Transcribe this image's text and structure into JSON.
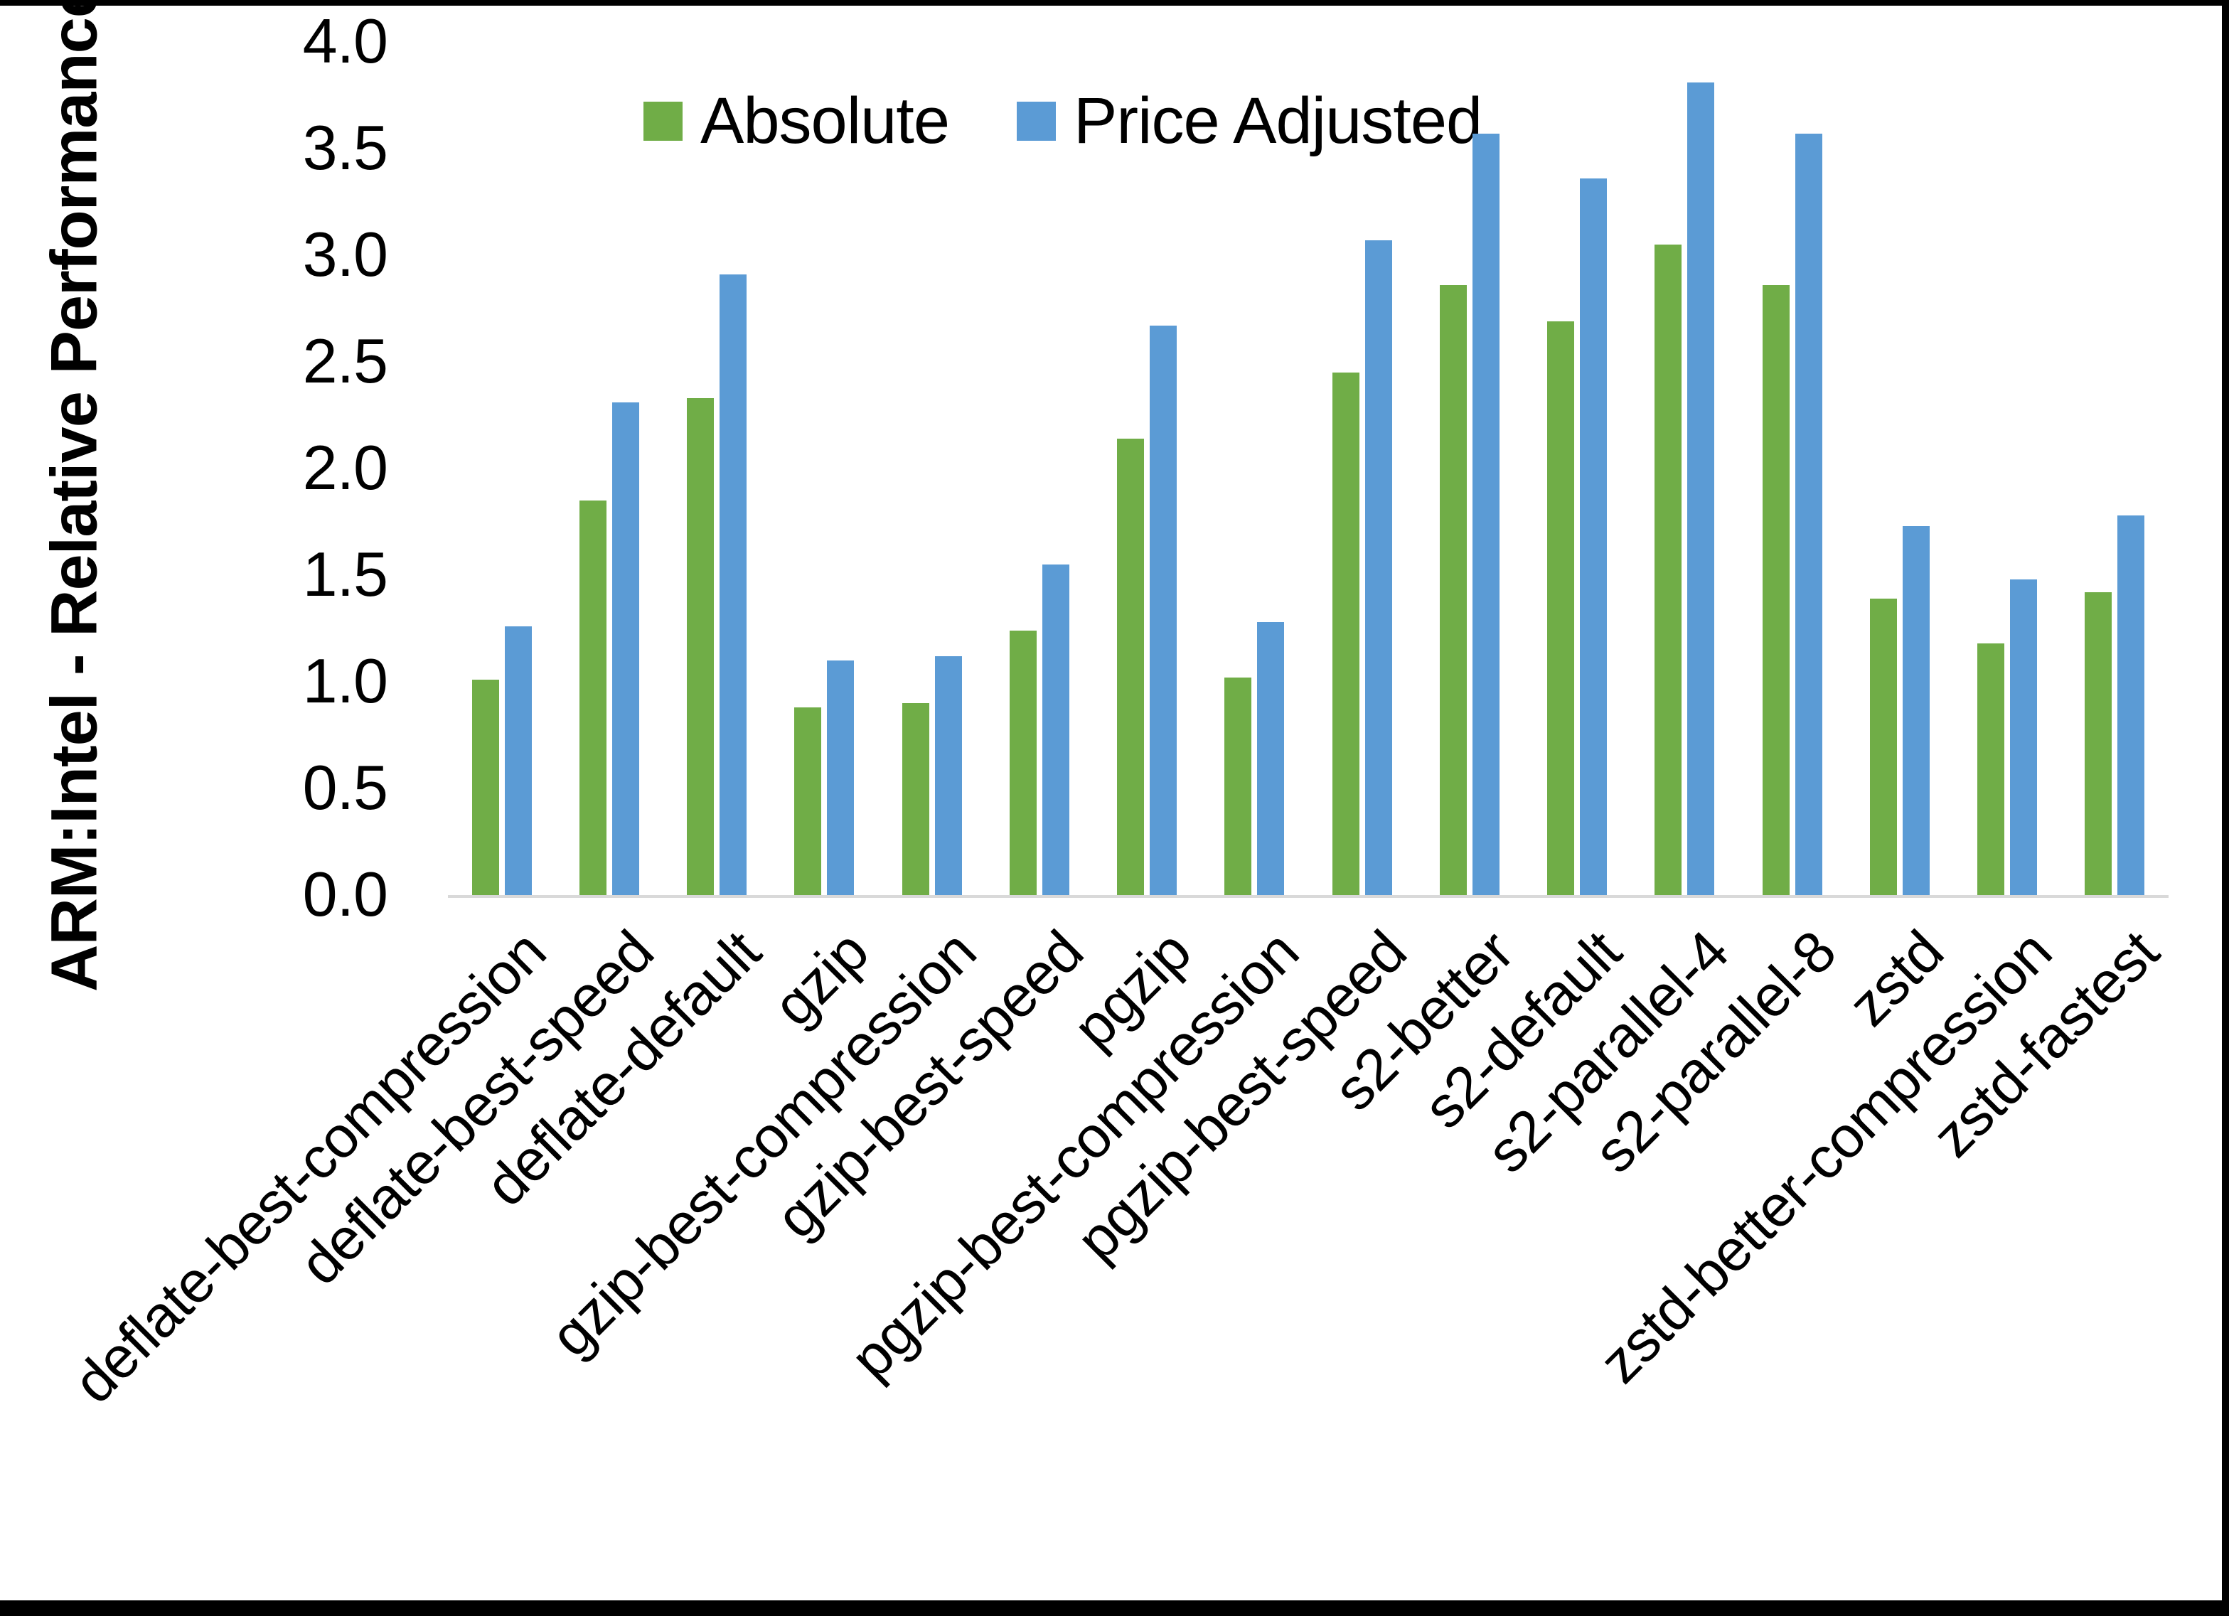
{
  "chart_data": {
    "type": "bar",
    "title": "",
    "y_axis_title": "ARM:Intel - Relative Performance",
    "xlabel": "",
    "ylabel": "ARM:Intel - Relative Performance",
    "ylim": [
      0.0,
      4.0
    ],
    "y_ticks": [
      "4.0",
      "3.5",
      "3.0",
      "2.5",
      "2.0",
      "1.5",
      "1.0",
      "0.5",
      "0.0"
    ],
    "grid": false,
    "legend_position": "top-center",
    "axis_line_color": "#d9d9d9",
    "categories": [
      "deflate-best-compression",
      "deflate-best-speed",
      "deflate-default",
      "gzip",
      "gzip-best-compression",
      "gzip-best-speed",
      "pgzip",
      "pgzip-best-compression",
      "pgzip-best-speed",
      "s2-better",
      "s2-default",
      "s2-parallel-4",
      "s2-parallel-8",
      "zstd",
      "zstd-better-compression",
      "zstd-fastest"
    ],
    "series": [
      {
        "name": "Absolute",
        "color": "#70AD47",
        "values": [
          1.01,
          1.85,
          2.33,
          0.88,
          0.9,
          1.24,
          2.14,
          1.02,
          2.45,
          2.86,
          2.69,
          3.05,
          2.86,
          1.39,
          1.18,
          1.42
        ]
      },
      {
        "name": "Price Adjusted",
        "color": "#5B9BD5",
        "values": [
          1.26,
          2.31,
          2.91,
          1.1,
          1.12,
          1.55,
          2.67,
          1.28,
          3.07,
          3.57,
          3.36,
          3.81,
          3.57,
          1.73,
          1.48,
          1.78
        ]
      }
    ]
  }
}
